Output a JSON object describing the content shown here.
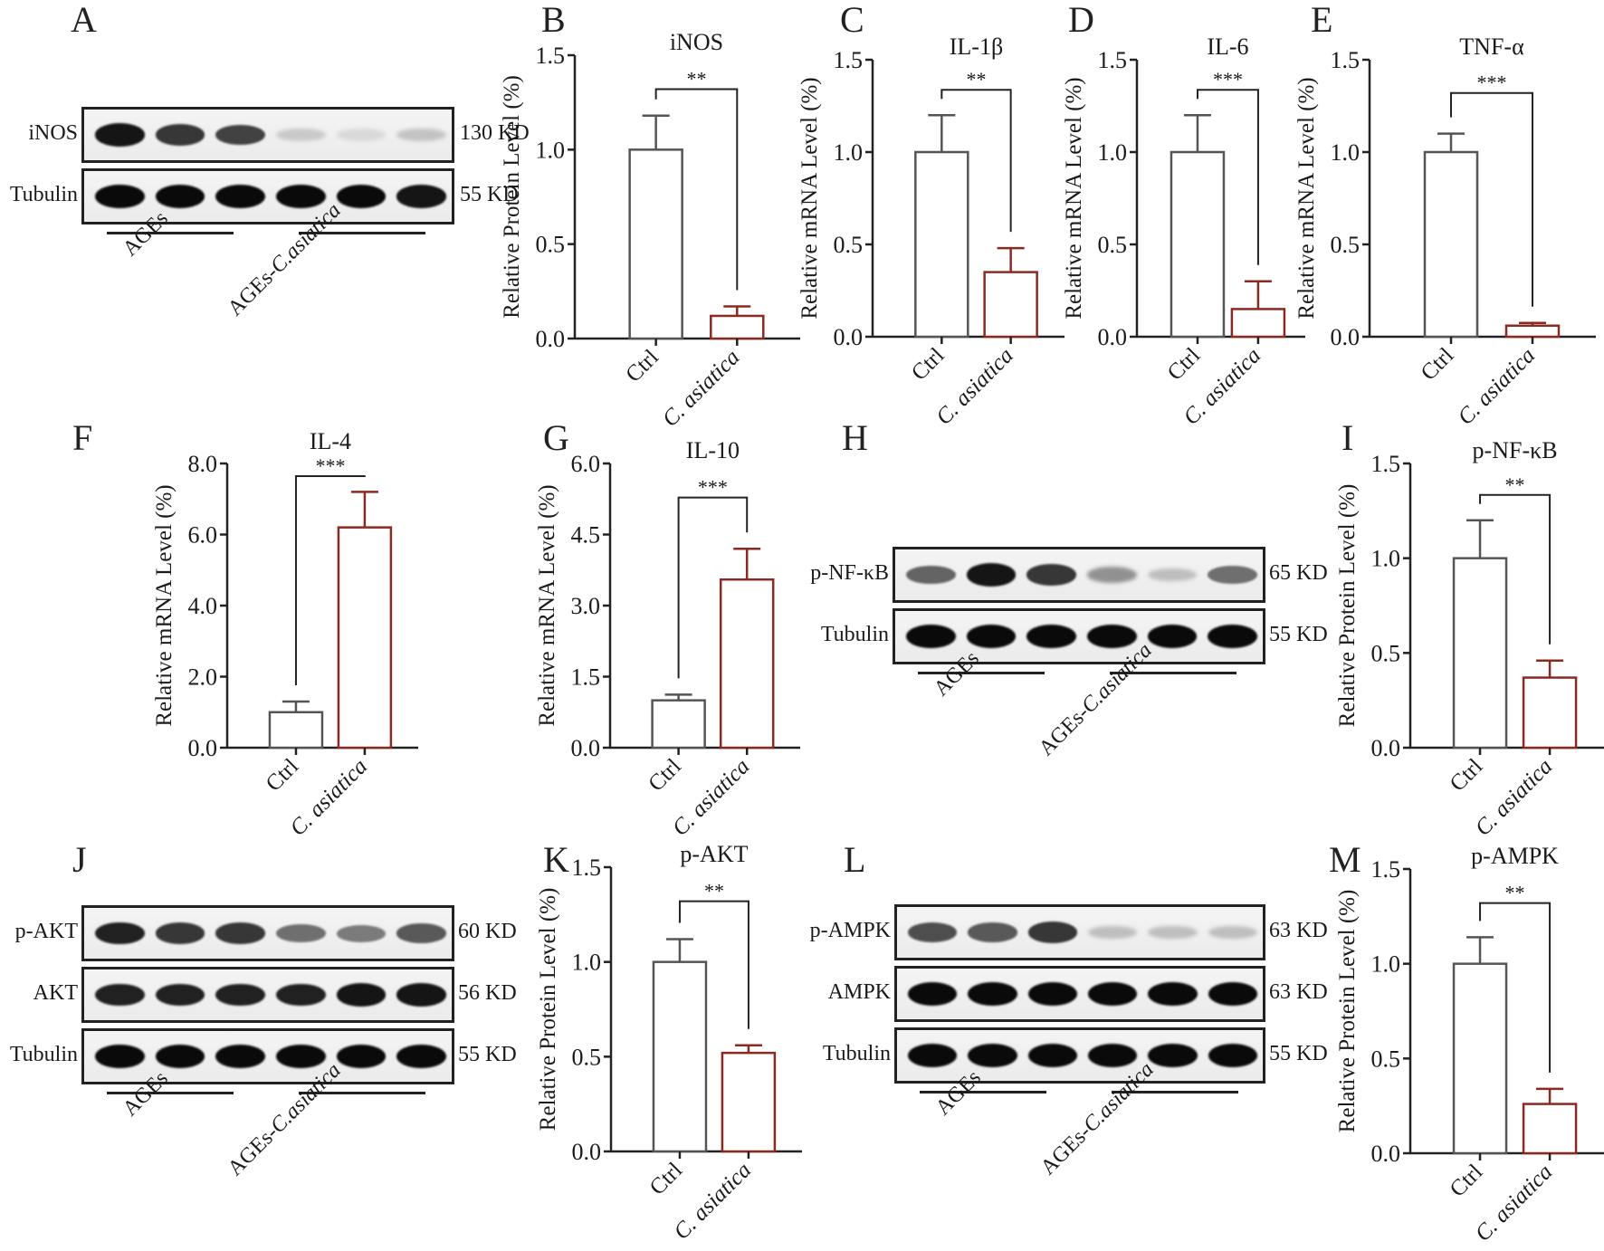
{
  "figure": {
    "panels": {
      "A": {
        "letter": "A"
      },
      "B": {
        "letter": "B"
      },
      "C": {
        "letter": "C"
      },
      "D": {
        "letter": "D"
      },
      "E": {
        "letter": "E"
      },
      "F": {
        "letter": "F"
      },
      "G": {
        "letter": "G"
      },
      "H": {
        "letter": "H"
      },
      "I": {
        "letter": "I"
      },
      "J": {
        "letter": "J"
      },
      "K": {
        "letter": "K"
      },
      "L": {
        "letter": "L"
      },
      "M": {
        "letter": "M"
      }
    },
    "groups": {
      "agEs": "AGEs",
      "agEs_ca_prefix": "AGEs-",
      "agEs_ca_italic": "C.asiatica"
    },
    "blots": {
      "A": {
        "rows": [
          {
            "label": "iNOS",
            "kd": "130 KD",
            "intensity": [
              0.95,
              0.8,
              0.75,
              0.15,
              0.08,
              0.18
            ]
          },
          {
            "label": "Tubulin",
            "kd": "55 KD",
            "intensity": [
              1,
              1,
              1,
              1,
              1,
              0.95
            ]
          }
        ]
      },
      "H": {
        "rows": [
          {
            "label": "p-NF-κB",
            "kd": "65 KD",
            "intensity": [
              0.6,
              0.95,
              0.8,
              0.4,
              0.2,
              0.55
            ]
          },
          {
            "label": "Tubulin",
            "kd": "55 KD",
            "intensity": [
              1,
              1,
              1,
              1,
              1,
              1
            ]
          }
        ]
      },
      "J": {
        "rows": [
          {
            "label": "p-AKT",
            "kd": "60 KD",
            "intensity": [
              0.9,
              0.8,
              0.8,
              0.55,
              0.5,
              0.65
            ]
          },
          {
            "label": "AKT",
            "kd": "56 KD",
            "intensity": [
              0.9,
              0.9,
              0.9,
              0.9,
              0.95,
              0.95
            ]
          },
          {
            "label": "Tubulin",
            "kd": "55 KD",
            "intensity": [
              1,
              1,
              1,
              1,
              1,
              1
            ]
          }
        ]
      },
      "L": {
        "rows": [
          {
            "label": "p-AMPK",
            "kd": "63 KD",
            "intensity": [
              0.7,
              0.65,
              0.8,
              0.2,
              0.2,
              0.2
            ]
          },
          {
            "label": "AMPK",
            "kd": "63 KD",
            "intensity": [
              1,
              1,
              1,
              1,
              1,
              1
            ]
          },
          {
            "label": "Tubulin",
            "kd": "55 KD",
            "intensity": [
              1,
              1,
              1,
              1,
              1,
              1
            ]
          }
        ]
      }
    }
  },
  "colors": {
    "ctrl": "#555555",
    "treatment": "#8b2a22",
    "axis": "#222222",
    "text": "#1a1a1a"
  },
  "chart_data": [
    {
      "panel": "B",
      "type": "bar",
      "title": "iNOS",
      "ylabel": "Relative Protein Level (%)",
      "categories": [
        "Ctrl",
        "C. asiatica"
      ],
      "values": [
        1.0,
        0.12
      ],
      "errors": [
        0.18,
        0.05
      ],
      "ylim": [
        0,
        1.5
      ],
      "yticks": [
        "0.0",
        "0.5",
        "1.0",
        "1.5"
      ],
      "significance": "**"
    },
    {
      "panel": "C",
      "type": "bar",
      "title": "IL-1β",
      "ylabel": "Relative mRNA Level (%)",
      "categories": [
        "Ctrl",
        "C. asiatica"
      ],
      "values": [
        1.0,
        0.35
      ],
      "errors": [
        0.2,
        0.13
      ],
      "ylim": [
        0,
        1.5
      ],
      "yticks": [
        "0.0",
        "0.5",
        "1.0",
        "1.5"
      ],
      "significance": "**"
    },
    {
      "panel": "D",
      "type": "bar",
      "title": "IL-6",
      "ylabel": "Relative mRNA Level (%)",
      "categories": [
        "Ctrl",
        "C. asiatica"
      ],
      "values": [
        1.0,
        0.15
      ],
      "errors": [
        0.2,
        0.15
      ],
      "ylim": [
        0,
        1.5
      ],
      "yticks": [
        "0.0",
        "0.5",
        "1.0",
        "1.5"
      ],
      "significance": "***"
    },
    {
      "panel": "E",
      "type": "bar",
      "title": "TNF-α",
      "ylabel": "Relative mRNA Level (%)",
      "categories": [
        "Ctrl",
        "C. asiatica"
      ],
      "values": [
        1.0,
        0.06
      ],
      "errors": [
        0.1,
        0.015
      ],
      "ylim": [
        0,
        1.5
      ],
      "yticks": [
        "0.0",
        "0.5",
        "1.0",
        "1.5"
      ],
      "significance": "***"
    },
    {
      "panel": "F",
      "type": "bar",
      "title": "IL-4",
      "ylabel": "Relative mRNA Level (%)",
      "categories": [
        "Ctrl",
        "C. asiatica"
      ],
      "values": [
        1.0,
        6.2
      ],
      "errors": [
        0.3,
        1.0
      ],
      "ylim": [
        0,
        8.0
      ],
      "yticks": [
        "0.0",
        "2.0",
        "4.0",
        "6.0",
        "8.0"
      ],
      "significance": "***"
    },
    {
      "panel": "G",
      "type": "bar",
      "title": "IL-10",
      "ylabel": "Relative mRNA Level (%)",
      "categories": [
        "Ctrl",
        "C. asiatica"
      ],
      "values": [
        1.0,
        3.55
      ],
      "errors": [
        0.12,
        0.65
      ],
      "ylim": [
        0,
        6.0
      ],
      "yticks": [
        "0.0",
        "1.5",
        "3.0",
        "4.5",
        "6.0"
      ],
      "significance": "***"
    },
    {
      "panel": "I",
      "type": "bar",
      "title": "p-NF-κB",
      "ylabel": "Relative Protein Level (%)",
      "categories": [
        "Ctrl",
        "C. asiatica"
      ],
      "values": [
        1.0,
        0.37
      ],
      "errors": [
        0.2,
        0.09
      ],
      "ylim": [
        0,
        1.5
      ],
      "yticks": [
        "0.0",
        "0.5",
        "1.0",
        "1.5"
      ],
      "significance": "**"
    },
    {
      "panel": "K",
      "type": "bar",
      "title": "p-AKT",
      "ylabel": "Relative Protein Level (%)",
      "categories": [
        "Ctrl",
        "C. asiatica"
      ],
      "values": [
        1.0,
        0.52
      ],
      "errors": [
        0.12,
        0.04
      ],
      "ylim": [
        0,
        1.5
      ],
      "yticks": [
        "0.0",
        "0.5",
        "1.0",
        "1.5"
      ],
      "significance": "**"
    },
    {
      "panel": "M",
      "type": "bar",
      "title": "p-AMPK",
      "ylabel": "Relative Protein Level (%)",
      "categories": [
        "Ctrl",
        "C. asiatica"
      ],
      "values": [
        1.0,
        0.26
      ],
      "errors": [
        0.14,
        0.08
      ],
      "ylim": [
        0,
        1.5
      ],
      "yticks": [
        "0.0",
        "0.5",
        "1.0",
        "1.5"
      ],
      "significance": "**"
    }
  ]
}
